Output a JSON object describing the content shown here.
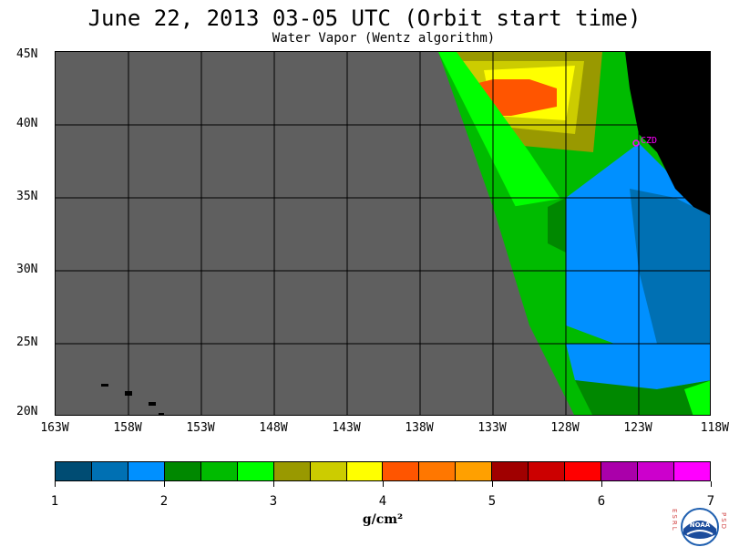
{
  "title": "June 22, 2013  03-05 UTC  (Orbit start time)",
  "subtitle": "Water Vapor (Wentz algorithm)",
  "map": {
    "lat_labels": [
      "45N",
      "40N",
      "35N",
      "30N",
      "25N",
      "20N"
    ],
    "lon_labels": [
      "163W",
      "158W",
      "153W",
      "148W",
      "143W",
      "138W",
      "133W",
      "128W",
      "123W",
      "118W"
    ],
    "station_label": "CZD",
    "colors": {
      "no_data": "#5f5f5f",
      "land": "#000000",
      "station": "#ff00ff"
    }
  },
  "colorbar": {
    "colors": [
      "#004c73",
      "#0070b3",
      "#0090ff",
      "#008800",
      "#00bb00",
      "#00ff00",
      "#999900",
      "#cccc00",
      "#ffff00",
      "#ff5500",
      "#ff7700",
      "#ffa000",
      "#a00000",
      "#cc0000",
      "#ff0000",
      "#aa00aa",
      "#cc00cc",
      "#ff00ff"
    ],
    "labels": [
      "1",
      "2",
      "3",
      "4",
      "5",
      "6",
      "7"
    ],
    "units": "g/cm²"
  },
  "logo": {
    "left_text": "ESRL",
    "right_text": "PSD",
    "emblem_text": "NOAA"
  }
}
